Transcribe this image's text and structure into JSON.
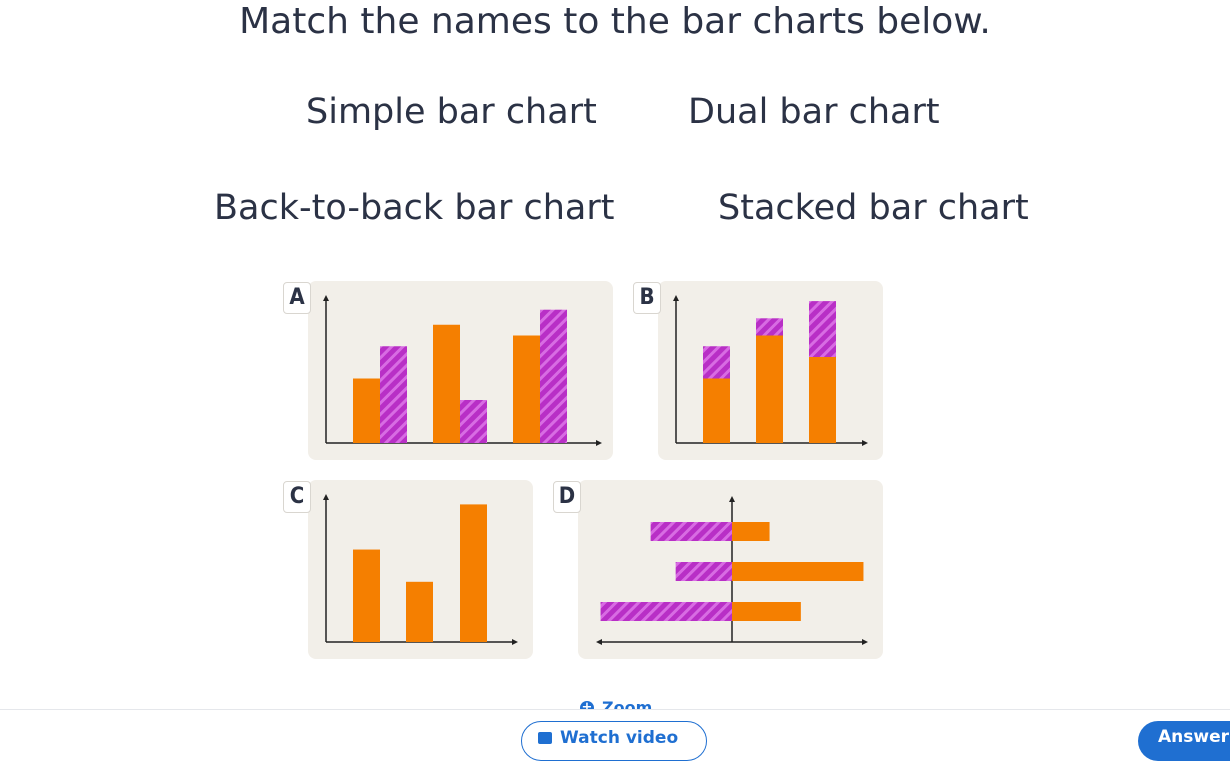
{
  "question": "Match the names to the bar charts below.",
  "names": [
    "Simple bar chart",
    "Dual bar chart",
    "Back-to-back bar chart",
    "Stacked bar chart"
  ],
  "charts": {
    "A": {
      "letter": "A",
      "type": "dual",
      "orange": [
        3,
        5.5,
        5
      ],
      "purple": [
        4.5,
        2,
        6.2
      ]
    },
    "B": {
      "letter": "B",
      "type": "stacked",
      "orange": [
        3,
        5,
        4
      ],
      "purple": [
        1.5,
        0.8,
        2.6
      ]
    },
    "C": {
      "letter": "C",
      "type": "simple",
      "orange": [
        4.3,
        2.8,
        6.4
      ]
    },
    "D": {
      "letter": "D",
      "type": "back-to-back",
      "orange": [
        1.2,
        4.2,
        2.2
      ],
      "purple": [
        2.6,
        1.8,
        4.2
      ]
    }
  },
  "colors": {
    "orange": "#f57f00",
    "purple": "#b82fc6",
    "card": "#f2efe9"
  },
  "zoom_label": "Zoom",
  "watch_label": "Watch video",
  "answer_label": "Answer",
  "icons": {
    "zoom": "zoom-plus-icon",
    "video": "video-icon"
  }
}
